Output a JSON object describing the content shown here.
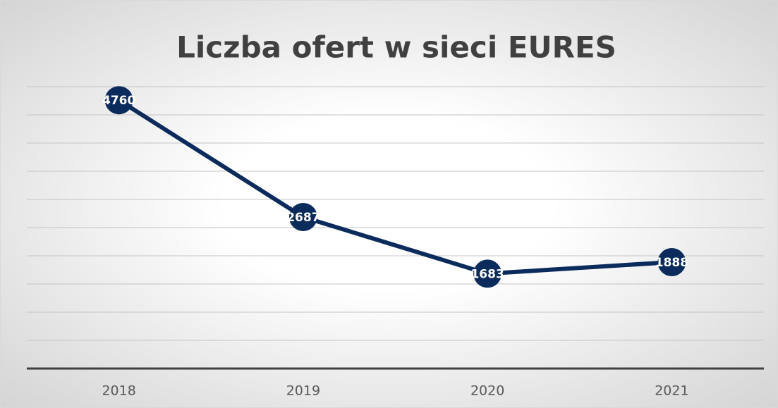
{
  "chart_data": {
    "type": "line",
    "title": "Liczba ofert w sieci EURES",
    "categories": [
      "2018",
      "2019",
      "2020",
      "2021"
    ],
    "values": [
      4760,
      2687,
      1683,
      1888
    ],
    "color": "#0b2b5c",
    "ylim": [
      0,
      5000
    ],
    "yticks": [
      0,
      500,
      1000,
      1500,
      2000,
      2500,
      3000,
      3500,
      4000,
      4500,
      5000
    ],
    "grid": true
  }
}
